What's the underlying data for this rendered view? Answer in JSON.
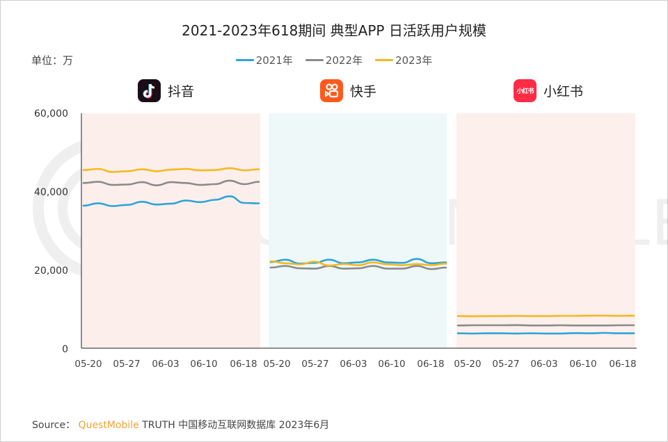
{
  "title": "2021-2023年618期间 典型APP 日活跃用户规模",
  "unit_label": "单位：万",
  "legend": [
    {
      "label": "2021年",
      "color": "#2ea3d6"
    },
    {
      "label": "2022年",
      "color": "#8a8a8a"
    },
    {
      "label": "2023年",
      "color": "#f6b81e"
    }
  ],
  "apps": [
    {
      "name": "抖音",
      "icon": "douyin-logo-icon",
      "icon_bg": "#1a0d17",
      "panel_color": "#fcefeb"
    },
    {
      "name": "快手",
      "icon": "kuaishou-logo-icon",
      "icon_bg": "#fe5a1e",
      "panel_color": "#eef8f9"
    },
    {
      "name": "小红书",
      "icon": "xiaohongshu-logo-icon",
      "icon_bg": "#fe2c45",
      "icon_text": "小红书",
      "panel_color": "#fdefec"
    }
  ],
  "source": {
    "prefix": "Source：",
    "brand": "QuestMobile",
    "rest": "TRUTH 中国移动互联网数据库 2023年6月"
  },
  "watermark": "QUEST MOBILE",
  "chart_data": {
    "type": "line",
    "title": "2021-2023年618期间 典型APP 日活跃用户规模",
    "ylabel": "单位：万",
    "xlabel": "",
    "ylim": [
      0,
      60000
    ],
    "yticks": [
      "0",
      "20,000",
      "40,000",
      "60,000"
    ],
    "grid": false,
    "legend_position": "top",
    "panels": [
      {
        "app": "抖音",
        "x": [
          "05-20",
          "05-27",
          "06-03",
          "06-10",
          "06-18"
        ],
        "series": [
          {
            "name": "2021年",
            "values": [
              36400,
              37000,
              36300,
              36600,
              37400,
              36700,
              36900,
              37700,
              37300,
              37900,
              38800,
              37100,
              37000
            ]
          },
          {
            "name": "2022年",
            "values": [
              42200,
              42500,
              41700,
              41800,
              42400,
              41600,
              42400,
              42200,
              41700,
              41900,
              42800,
              41900,
              42500
            ]
          },
          {
            "name": "2023年",
            "values": [
              45500,
              45800,
              45000,
              45200,
              45700,
              45200,
              45600,
              45800,
              45400,
              45500,
              46000,
              45400,
              45700
            ]
          }
        ]
      },
      {
        "app": "快手",
        "x": [
          "05-20",
          "05-27",
          "06-03",
          "06-10",
          "06-18"
        ],
        "series": [
          {
            "name": "2021年",
            "values": [
              22000,
              22600,
              21600,
              21800,
              22600,
              21700,
              21900,
              22600,
              21900,
              21800,
              22800,
              21700,
              21900
            ]
          },
          {
            "name": "2022年",
            "values": [
              20600,
              21000,
              20400,
              20300,
              21000,
              20300,
              20400,
              21000,
              20300,
              20300,
              21000,
              20200,
              20600
            ]
          },
          {
            "name": "2023年",
            "values": [
              22200,
              21700,
              21400,
              22100,
              21100,
              21500,
              21200,
              21900,
              21400,
              21200,
              21500,
              21200,
              21600
            ]
          }
        ]
      },
      {
        "app": "小红书",
        "x": [
          "05-20",
          "05-27",
          "06-03",
          "06-10",
          "06-18"
        ],
        "series": [
          {
            "name": "2021年",
            "values": [
              3800,
              3750,
              3800,
              3800,
              3750,
              3800,
              3750,
              3750,
              3850,
              3800,
              3900,
              3800,
              3800
            ]
          },
          {
            "name": "2022年",
            "values": [
              5800,
              5850,
              5850,
              5850,
              5900,
              5800,
              5800,
              5850,
              5800,
              5800,
              5800,
              5850,
              5850
            ]
          },
          {
            "name": "2023年",
            "values": [
              8200,
              8150,
              8200,
              8200,
              8250,
              8200,
              8200,
              8250,
              8250,
              8300,
              8300,
              8250,
              8300
            ]
          }
        ]
      }
    ]
  }
}
